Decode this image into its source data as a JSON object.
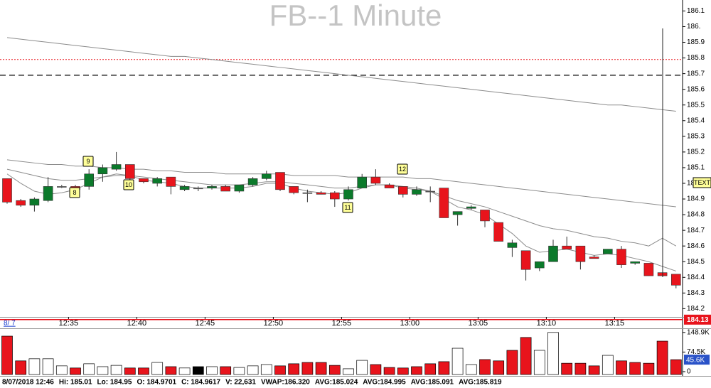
{
  "chart_data": {
    "type": "candlestick",
    "title": "FB--1 Minute",
    "date_tab": "8/ 7",
    "categories": [
      null,
      null,
      null,
      null,
      null,
      "12:35",
      null,
      null,
      null,
      null,
      "12:40",
      null,
      null,
      null,
      null,
      "12:45",
      null,
      null,
      null,
      null,
      "12:50",
      null,
      null,
      null,
      null,
      "12:55",
      null,
      null,
      null,
      null,
      "13:00",
      null,
      null,
      null,
      null,
      "13:05",
      null,
      null,
      null,
      null,
      "13:10",
      null,
      null,
      null,
      null,
      "13:15",
      null,
      null,
      null,
      null
    ],
    "open": [
      185.03,
      184.89,
      184.86,
      184.89,
      184.98,
      184.98,
      184.98,
      185.06,
      185.09,
      185.12,
      185.03,
      185.0,
      185.04,
      184.96,
      184.97,
      184.97,
      184.98,
      184.95,
      184.99,
      185.03,
      185.07,
      184.98,
      184.94,
      184.94,
      184.94,
      184.9,
      184.97,
      185.04,
      184.99,
      184.98,
      184.93,
      184.95,
      184.97,
      184.8,
      184.84,
      184.83,
      184.75,
      184.59,
      184.57,
      184.46,
      184.5,
      184.6,
      184.6,
      184.53,
      184.55,
      184.58,
      184.49,
      184.49,
      184.43,
      184.42
    ],
    "high": [
      185.03,
      184.9,
      184.91,
      185.04,
      184.99,
      184.99,
      185.09,
      185.12,
      185.2,
      185.12,
      185.03,
      185.04,
      185.04,
      184.99,
      184.98,
      184.99,
      184.99,
      184.99,
      185.04,
      185.08,
      185.07,
      184.98,
      184.96,
      184.95,
      184.95,
      184.98,
      185.06,
      185.09,
      185.0,
      184.98,
      184.98,
      184.98,
      184.97,
      184.82,
      184.86,
      184.83,
      184.75,
      184.64,
      184.57,
      184.5,
      184.64,
      184.66,
      184.6,
      184.54,
      184.58,
      184.6,
      184.5,
      184.49,
      184.43,
      184.42
    ],
    "low": [
      184.87,
      184.85,
      184.82,
      184.88,
      184.97,
      184.94,
      184.96,
      185.01,
      185.08,
      184.97,
      185.0,
      184.98,
      184.93,
      184.95,
      184.95,
      184.96,
      184.95,
      184.94,
      184.98,
      185.02,
      184.95,
      184.93,
      184.88,
      184.93,
      184.85,
      184.89,
      184.97,
      184.99,
      184.97,
      184.91,
      184.92,
      184.88,
      184.78,
      184.73,
      184.83,
      184.72,
      184.63,
      184.53,
      184.38,
      184.44,
      184.5,
      184.58,
      184.45,
      184.52,
      184.55,
      184.46,
      184.48,
      184.41,
      184.41,
      184.33
    ],
    "close": [
      184.88,
      184.86,
      184.9,
      184.98,
      184.98,
      184.96,
      185.06,
      185.1,
      185.12,
      185.03,
      185.01,
      185.03,
      184.98,
      184.98,
      184.97,
      184.98,
      184.95,
      184.99,
      185.03,
      185.06,
      184.96,
      184.94,
      184.94,
      184.93,
      184.9,
      184.96,
      185.04,
      185.0,
      184.97,
      184.93,
      184.96,
      184.95,
      184.78,
      184.82,
      184.85,
      184.76,
      184.63,
      184.62,
      184.45,
      184.5,
      184.6,
      184.58,
      184.5,
      184.52,
      184.58,
      184.48,
      184.5,
      184.41,
      184.41,
      184.35
    ],
    "up_color": "#0b7a2b",
    "down_color": "#e8141c",
    "series": [
      {
        "color": "#8c8c8c",
        "values": [
          185.93,
          185.92,
          185.91,
          185.9,
          185.89,
          185.88,
          185.87,
          185.86,
          185.85,
          185.84,
          185.83,
          185.82,
          185.81,
          185.81,
          185.8,
          185.79,
          185.78,
          185.77,
          185.76,
          185.75,
          185.74,
          185.73,
          185.72,
          185.71,
          185.7,
          185.69,
          185.68,
          185.67,
          185.66,
          185.65,
          185.64,
          185.63,
          185.62,
          185.61,
          185.6,
          185.59,
          185.58,
          185.57,
          185.56,
          185.55,
          185.54,
          185.53,
          185.52,
          185.51,
          185.5,
          185.5,
          185.49,
          185.48,
          185.47,
          185.46
        ]
      },
      {
        "color": "#8c8c8c",
        "values": [
          185.15,
          185.14,
          185.13,
          185.12,
          185.12,
          185.11,
          185.11,
          185.1,
          185.1,
          185.09,
          185.09,
          185.08,
          185.08,
          185.07,
          185.07,
          185.07,
          185.06,
          185.06,
          185.06,
          185.06,
          185.06,
          185.05,
          185.05,
          185.05,
          185.05,
          185.04,
          185.04,
          185.04,
          185.04,
          185.04,
          185.03,
          185.03,
          185.02,
          185.01,
          185.0,
          184.99,
          184.98,
          184.97,
          184.96,
          184.95,
          184.94,
          184.93,
          184.92,
          184.91,
          184.9,
          184.89,
          184.88,
          184.87,
          184.86,
          184.85
        ]
      },
      {
        "color": "#8c8c8c",
        "values": [
          185.09,
          185.07,
          185.05,
          185.03,
          185.02,
          185.02,
          185.03,
          185.04,
          185.05,
          185.05,
          185.04,
          185.03,
          185.02,
          185.01,
          185.0,
          184.99,
          184.99,
          184.99,
          185.0,
          185.01,
          185.01,
          185.0,
          184.99,
          184.98,
          184.97,
          184.97,
          184.98,
          184.99,
          184.99,
          184.98,
          184.97,
          184.95,
          184.92,
          184.89,
          184.87,
          184.85,
          184.82,
          184.79,
          184.76,
          184.73,
          184.71,
          184.7,
          184.68,
          184.66,
          184.65,
          184.63,
          184.62,
          184.6,
          184.65,
          184.6
        ]
      },
      {
        "color": "#8c8c8c",
        "values": [
          185.06,
          185.0,
          184.95,
          184.93,
          184.94,
          184.96,
          185.0,
          185.04,
          185.06,
          185.05,
          185.02,
          185.01,
          185.0,
          184.98,
          184.97,
          184.97,
          184.97,
          184.97,
          184.98,
          185.0,
          185.0,
          184.97,
          184.95,
          184.94,
          184.93,
          184.94,
          184.97,
          184.99,
          184.99,
          184.97,
          184.96,
          184.95,
          184.9,
          184.85,
          184.83,
          184.8,
          184.74,
          184.68,
          184.6,
          184.56,
          184.57,
          184.58,
          184.56,
          184.54,
          184.55,
          184.54,
          184.52,
          184.5,
          184.47,
          184.44
        ]
      }
    ],
    "reference_lines": [
      {
        "value": 185.79,
        "color": "#e8141c",
        "style": "dotted"
      },
      {
        "value": 185.69,
        "color": "#000000",
        "style": "dashed"
      }
    ],
    "last_price": 184.13,
    "text_marker": "TEXT",
    "annotations": [
      "9",
      "8",
      "10",
      "12",
      "11"
    ],
    "ylim": [
      184.15,
      186.17
    ],
    "yticks": [
      184.2,
      184.3,
      184.4,
      184.5,
      184.6,
      184.7,
      184.8,
      184.9,
      {
        "value": 185,
        "label": "185."
      },
      185.1,
      185.2,
      185.3,
      185.4,
      185.5,
      185.6,
      185.7,
      185.8,
      185.9,
      {
        "value": 186,
        "label": "186."
      },
      186.1
    ],
    "volume": {
      "values": [
        135000,
        41000,
        49000,
        49000,
        22000,
        14000,
        30000,
        19000,
        24000,
        14000,
        14000,
        35000,
        19000,
        14000,
        19000,
        19000,
        19000,
        16000,
        22000,
        27000,
        22000,
        30000,
        35000,
        35000,
        24000,
        11000,
        43000,
        27000,
        16000,
        14000,
        19000,
        30000,
        38000,
        89000,
        27000,
        46000,
        41000,
        81000,
        130000,
        81000,
        149000,
        32000,
        32000,
        22000,
        62000,
        41000,
        35000,
        32000,
        116000,
        45600
      ],
      "colors": [
        "#e8141c",
        "#e8141c",
        "#ffffff",
        "#ffffff",
        "#ffffff",
        "#e8141c",
        "#ffffff",
        "#ffffff",
        "#ffffff",
        "#e8141c",
        "#e8141c",
        "#ffffff",
        "#e8141c",
        "#ffffff",
        "#000000",
        "#ffffff",
        "#e8141c",
        "#ffffff",
        "#ffffff",
        "#ffffff",
        "#e8141c",
        "#e8141c",
        "#e8141c",
        "#e8141c",
        "#e8141c",
        "#ffffff",
        "#ffffff",
        "#e8141c",
        "#e8141c",
        "#e8141c",
        "#e8141c",
        "#e8141c",
        "#e8141c",
        "#ffffff",
        "#ffffff",
        "#e8141c",
        "#e8141c",
        "#e8141c",
        "#e8141c",
        "#ffffff",
        "#ffffff",
        "#e8141c",
        "#e8141c",
        "#e8141c",
        "#ffffff",
        "#e8141c",
        "#e8141c",
        "#e8141c",
        "#e8141c",
        "#e8141c"
      ],
      "last_label": "45.6K",
      "ylim": [
        0,
        162000
      ],
      "yticks": [
        {
          "value": 148900,
          "label": "148.9K"
        },
        {
          "value": 74500,
          "label": "74.5K"
        },
        0
      ]
    },
    "status": [
      "8/07/2018 12:46",
      "Hi: 185.01",
      "Lo: 184.95",
      "O: 184.9701",
      "C: 184.9617",
      "V: 22,631",
      "VWAP:186.320",
      "AVG:185.024",
      "AVG:184.995",
      "AVG:185.091",
      "AVG:185.819"
    ]
  }
}
